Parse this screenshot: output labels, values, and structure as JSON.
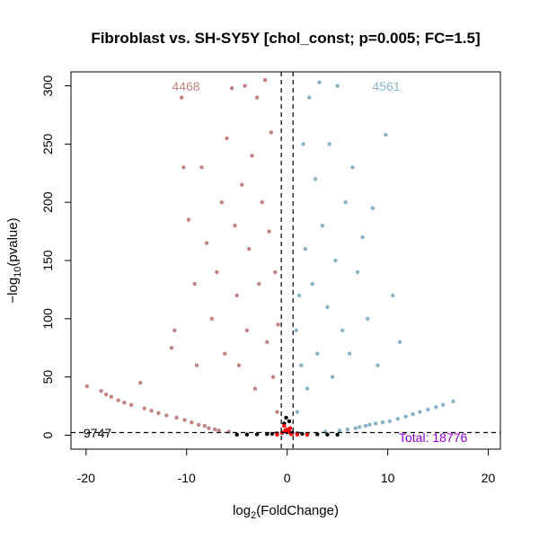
{
  "chart_data": {
    "type": "scatter",
    "title": "Fibroblast vs. SH-SY5Y [chol_const; p=0.005; FC=1.5]",
    "xlabel": {
      "prefix": "log",
      "sub": "2",
      "suffix": "(FoldChange)"
    },
    "ylabel": {
      "prefix": "−log",
      "sub": "10",
      "suffix": "(pvalue)"
    },
    "xlim": [
      -21.5,
      21.2
    ],
    "ylim": [
      -12,
      312
    ],
    "x_ticks": [
      -20,
      -10,
      0,
      10,
      20
    ],
    "y_ticks": [
      0,
      50,
      100,
      150,
      200,
      250,
      300
    ],
    "x_tick_labels": [
      "-20",
      "-10",
      "0",
      "10",
      "20"
    ],
    "y_tick_labels": [
      "0",
      "50",
      "100",
      "150",
      "200",
      "250",
      "300"
    ],
    "thresholds": {
      "log2fc": [
        -0.585,
        0.585
      ],
      "neg_log10_p": 2.3
    },
    "counts": {
      "down": "4468",
      "up": "4561",
      "not_significant": "9747",
      "total": "Total: 18776"
    },
    "colors": {
      "down": "#c08484",
      "up": "#8ab4c5",
      "not_significant": "#000000",
      "highlight": "#ff0000",
      "total_label": "#9400d3"
    },
    "series": [
      {
        "name": "down",
        "points": [
          [
            -19.9,
            42
          ],
          [
            -18.5,
            38
          ],
          [
            -18,
            35
          ],
          [
            -17.5,
            33
          ],
          [
            -16.8,
            30
          ],
          [
            -16.2,
            28
          ],
          [
            -15.5,
            26
          ],
          [
            -14.6,
            45
          ],
          [
            -14.2,
            23
          ],
          [
            -13.5,
            21
          ],
          [
            -12.8,
            19
          ],
          [
            -12,
            17
          ],
          [
            -11.5,
            75
          ],
          [
            -11.2,
            90
          ],
          [
            -11,
            15
          ],
          [
            -10.5,
            290
          ],
          [
            -10.3,
            230
          ],
          [
            -10.2,
            13
          ],
          [
            -9.8,
            185
          ],
          [
            -9.5,
            11
          ],
          [
            -9.2,
            130
          ],
          [
            -9,
            60
          ],
          [
            -8.8,
            9
          ],
          [
            -8.5,
            230
          ],
          [
            -8.2,
            8
          ],
          [
            -8,
            165
          ],
          [
            -7.8,
            6
          ],
          [
            -7.5,
            100
          ],
          [
            -7.2,
            5
          ],
          [
            -7,
            140
          ],
          [
            -6.8,
            4
          ],
          [
            -6.5,
            200
          ],
          [
            -6.2,
            70
          ],
          [
            -6,
            255
          ],
          [
            -5.8,
            3
          ],
          [
            -5.5,
            298
          ],
          [
            -5.2,
            180
          ],
          [
            -5,
            120
          ],
          [
            -4.8,
            60
          ],
          [
            -4.5,
            215
          ],
          [
            -4.2,
            300
          ],
          [
            -4,
            90
          ],
          [
            -3.8,
            160
          ],
          [
            -3.5,
            240
          ],
          [
            -3.2,
            40
          ],
          [
            -3,
            290
          ],
          [
            -2.8,
            130
          ],
          [
            -2.5,
            200
          ],
          [
            -2.2,
            305
          ],
          [
            -2,
            80
          ],
          [
            -1.8,
            175
          ],
          [
            -1.6,
            260
          ],
          [
            -1.4,
            50
          ],
          [
            -1.2,
            140
          ],
          [
            -1,
            20
          ],
          [
            -0.9,
            95
          ]
        ]
      },
      {
        "name": "up",
        "points": [
          [
            16.5,
            29
          ],
          [
            15.5,
            26
          ],
          [
            14.8,
            24
          ],
          [
            14,
            22
          ],
          [
            13.2,
            20
          ],
          [
            12.5,
            18
          ],
          [
            11.8,
            16
          ],
          [
            11.2,
            80
          ],
          [
            11,
            14
          ],
          [
            10.5,
            120
          ],
          [
            10.2,
            12
          ],
          [
            9.8,
            258
          ],
          [
            9.5,
            11
          ],
          [
            9,
            60
          ],
          [
            8.8,
            10
          ],
          [
            8.5,
            195
          ],
          [
            8.2,
            9
          ],
          [
            8,
            100
          ],
          [
            7.8,
            8
          ],
          [
            7.5,
            170
          ],
          [
            7.2,
            7
          ],
          [
            7,
            140
          ],
          [
            6.8,
            6
          ],
          [
            6.5,
            230
          ],
          [
            6.2,
            70
          ],
          [
            6,
            5
          ],
          [
            5.8,
            200
          ],
          [
            5.5,
            90
          ],
          [
            5.2,
            4
          ],
          [
            5,
            300
          ],
          [
            4.8,
            150
          ],
          [
            4.5,
            50
          ],
          [
            4.2,
            250
          ],
          [
            4,
            110
          ],
          [
            3.8,
            3
          ],
          [
            3.5,
            180
          ],
          [
            3.2,
            303
          ],
          [
            3,
            70
          ],
          [
            2.8,
            220
          ],
          [
            2.5,
            130
          ],
          [
            2.2,
            290
          ],
          [
            2,
            40
          ],
          [
            1.8,
            160
          ],
          [
            1.6,
            250
          ],
          [
            1.4,
            60
          ],
          [
            1.2,
            120
          ],
          [
            1,
            20
          ],
          [
            0.9,
            90
          ]
        ]
      },
      {
        "name": "not_significant",
        "points": [
          [
            -5,
            0.5
          ],
          [
            -4,
            0.6
          ],
          [
            -3,
            0.8
          ],
          [
            -2,
            1
          ],
          [
            -1.5,
            1.2
          ],
          [
            -1,
            1.5
          ],
          [
            -0.5,
            2
          ],
          [
            0,
            2.5
          ],
          [
            0.5,
            2
          ],
          [
            1,
            1.5
          ],
          [
            1.5,
            1.2
          ],
          [
            2,
            1
          ],
          [
            3,
            0.8
          ],
          [
            4,
            0.6
          ],
          [
            5,
            0.5
          ],
          [
            -0.3,
            10
          ],
          [
            0.2,
            12
          ],
          [
            -0.1,
            15
          ]
        ]
      },
      {
        "name": "highlight",
        "points": [
          [
            -0.5,
            2
          ],
          [
            -0.2,
            4
          ],
          [
            0,
            5
          ],
          [
            0.2,
            3
          ],
          [
            0.4,
            1
          ],
          [
            -1,
            0.5
          ],
          [
            1,
            0.6
          ],
          [
            -0.3,
            8
          ],
          [
            0.3,
            6
          ],
          [
            2,
            0.4
          ]
        ]
      }
    ]
  }
}
